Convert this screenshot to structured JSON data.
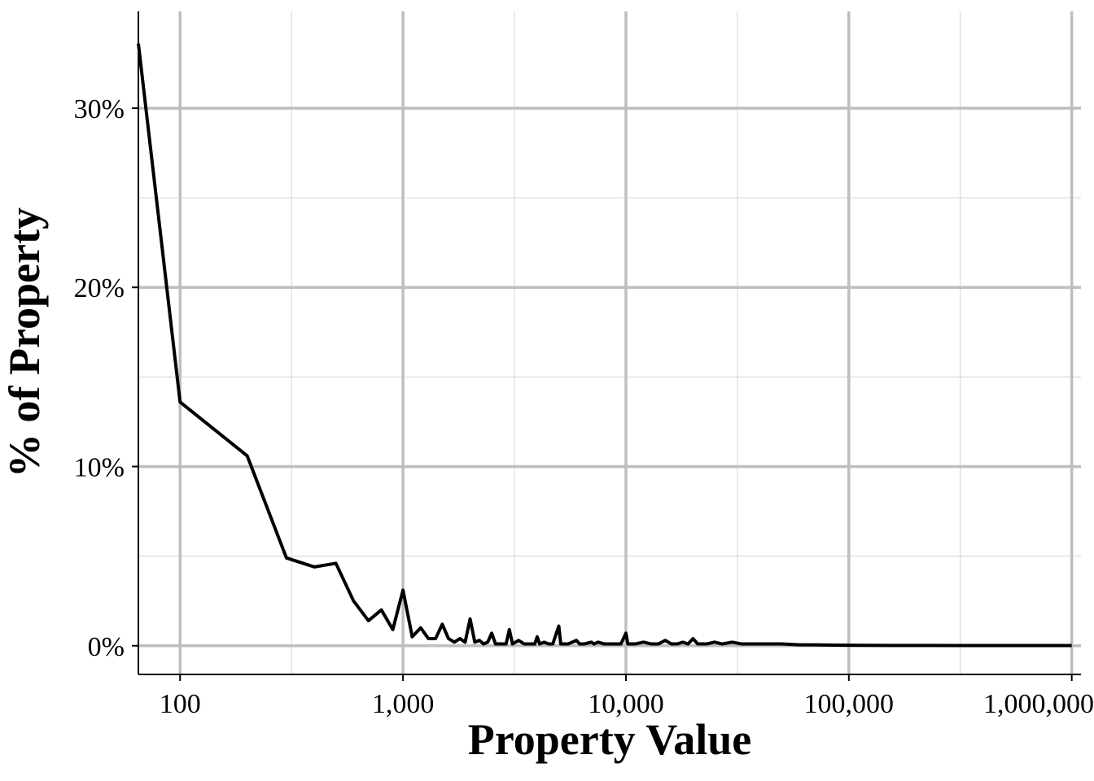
{
  "chart_data": {
    "type": "line",
    "title": "",
    "xlabel": "Property Value",
    "ylabel": "% of Property",
    "x_scale": "log10",
    "xlim": [
      65,
      1100000
    ],
    "ylim": [
      -0.016,
      0.354
    ],
    "x_ticks": [
      {
        "value": 100,
        "label": "100"
      },
      {
        "value": 1000,
        "label": "1,000"
      },
      {
        "value": 10000,
        "label": "10,000"
      },
      {
        "value": 100000,
        "label": "100,000"
      },
      {
        "value": 1000000,
        "label": "1,000,000"
      }
    ],
    "y_ticks": [
      {
        "value": 0,
        "label": "0%"
      },
      {
        "value": 0.1,
        "label": "10%"
      },
      {
        "value": 0.2,
        "label": "20%"
      },
      {
        "value": 0.3,
        "label": "30%"
      }
    ],
    "grid": true,
    "line_color": "#000000",
    "series": [
      {
        "x": [
          65,
          100,
          200,
          300,
          400,
          500,
          600,
          700,
          800,
          900,
          1000,
          1100,
          1200,
          1300,
          1400,
          1500,
          1600,
          1700,
          1800,
          1900,
          2000,
          2100,
          2200,
          2300,
          2400,
          2500,
          2600,
          2700,
          2800,
          2900,
          3000,
          3100,
          3300,
          3500,
          3700,
          3900,
          4000,
          4100,
          4300,
          4500,
          4700,
          5000,
          5100,
          5500,
          6000,
          6200,
          6500,
          7000,
          7200,
          7500,
          8000,
          8500,
          9000,
          9500,
          10000,
          10200,
          11000,
          12000,
          13000,
          14000,
          15000,
          16000,
          17000,
          18000,
          19000,
          20000,
          21000,
          23000,
          25000,
          27000,
          30000,
          33000,
          35000,
          40000,
          45000,
          50000,
          60000,
          70000,
          100000,
          150000,
          200000,
          300000,
          500000,
          1000000
        ],
        "y": [
          0.336,
          0.136,
          0.106,
          0.049,
          0.044,
          0.046,
          0.025,
          0.014,
          0.02,
          0.009,
          0.031,
          0.005,
          0.01,
          0.004,
          0.004,
          0.012,
          0.004,
          0.002,
          0.004,
          0.002,
          0.015,
          0.002,
          0.003,
          0.001,
          0.002,
          0.007,
          0.001,
          0.001,
          0.001,
          0.001,
          0.009,
          0.001,
          0.003,
          0.001,
          0.001,
          0.001,
          0.005,
          0.001,
          0.002,
          0.001,
          0.001,
          0.011,
          0.001,
          0.001,
          0.003,
          0.001,
          0.001,
          0.002,
          0.001,
          0.002,
          0.001,
          0.001,
          0.001,
          0.001,
          0.007,
          0.001,
          0.001,
          0.002,
          0.001,
          0.001,
          0.003,
          0.001,
          0.001,
          0.002,
          0.001,
          0.004,
          0.001,
          0.001,
          0.002,
          0.001,
          0.002,
          0.001,
          0.001,
          0.001,
          0.001,
          0.001,
          0.0005,
          0.0005,
          0.0003,
          0.0002,
          0.0002,
          0.0001,
          0.0001,
          0.0001
        ]
      }
    ]
  }
}
